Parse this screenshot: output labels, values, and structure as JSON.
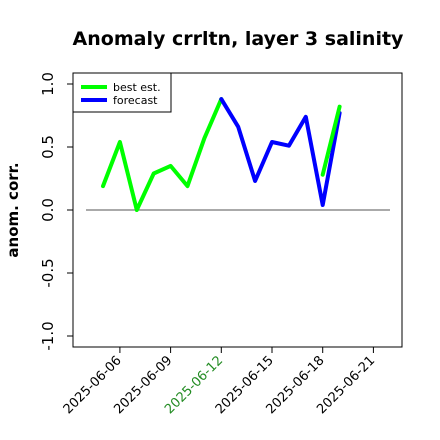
{
  "chart_data": {
    "type": "line",
    "title": "Anomaly crrltn, layer 3 salinity",
    "xlabel": "",
    "ylabel": "anom. corr.",
    "ylim": [
      -1.0,
      1.0
    ],
    "yticks": [
      "-1.0",
      "-0.5",
      "0.0",
      "0.5",
      "1.0"
    ],
    "ytick_values": [
      -1.0,
      -0.5,
      0.0,
      0.5,
      1.0
    ],
    "xticks": [
      "2025-06-06",
      "2025-06-09",
      "2025-06-12",
      "2025-06-15",
      "2025-06-18",
      "2025-06-21"
    ],
    "xtick_colors": [
      "#000000",
      "#000000",
      "#228b22",
      "#000000",
      "#000000",
      "#000000"
    ],
    "x": [
      "2025-06-05",
      "2025-06-06",
      "2025-06-07",
      "2025-06-08",
      "2025-06-09",
      "2025-06-10",
      "2025-06-11",
      "2025-06-12",
      "2025-06-13",
      "2025-06-14",
      "2025-06-15",
      "2025-06-16",
      "2025-06-17",
      "2025-06-18",
      "2025-06-19"
    ],
    "series": [
      {
        "name": "best est.",
        "color": "#00ff00",
        "x": [
          "2025-06-05",
          "2025-06-06",
          "2025-06-07",
          "2025-06-08",
          "2025-06-09",
          "2025-06-10",
          "2025-06-11",
          "2025-06-12"
        ],
        "values": [
          0.19,
          0.54,
          0.0,
          0.29,
          0.35,
          0.19,
          0.57,
          0.88
        ]
      },
      {
        "name": "forecast",
        "color": "#0000ff",
        "x": [
          "2025-06-12",
          "2025-06-13",
          "2025-06-14",
          "2025-06-15",
          "2025-06-16",
          "2025-06-17",
          "2025-06-18",
          "2025-06-19"
        ],
        "values": [
          0.88,
          0.66,
          0.23,
          0.54,
          0.51,
          0.74,
          0.04,
          0.77
        ]
      },
      {
        "name": "",
        "color": "#00ff00",
        "x": [
          "2025-06-18",
          "2025-06-19"
        ],
        "values": [
          0.28,
          0.82
        ]
      }
    ],
    "zero_line": true,
    "legend_position": "top-left",
    "grid": false
  }
}
